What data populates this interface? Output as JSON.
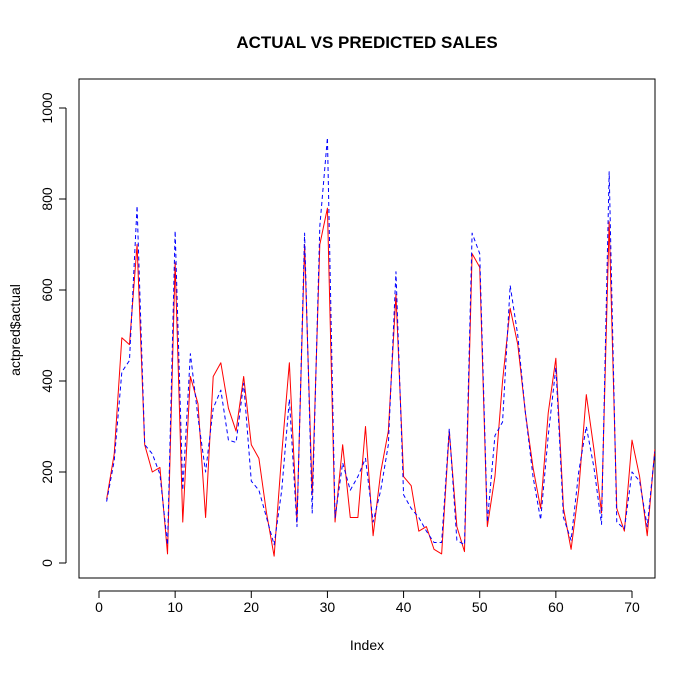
{
  "chart_data": {
    "type": "line",
    "title": "ACTUAL VS PREDICTED SALES",
    "xlabel": "Index",
    "ylabel": "actpred$actual",
    "xlim": [
      1,
      73
    ],
    "ylim": [
      0,
      1000
    ],
    "x_ticks": [
      "0",
      "10",
      "20",
      "30",
      "40",
      "50",
      "60",
      "70"
    ],
    "y_ticks": [
      "0",
      "200",
      "400",
      "600",
      "800",
      "1000"
    ],
    "grid": false,
    "x": [
      1,
      2,
      3,
      4,
      5,
      6,
      7,
      8,
      9,
      10,
      11,
      12,
      13,
      14,
      15,
      16,
      17,
      18,
      19,
      20,
      21,
      22,
      23,
      24,
      25,
      26,
      27,
      28,
      29,
      30,
      31,
      32,
      33,
      34,
      35,
      36,
      37,
      38,
      39,
      40,
      41,
      42,
      43,
      44,
      45,
      46,
      47,
      48,
      49,
      50,
      51,
      52,
      53,
      54,
      55,
      56,
      57,
      58,
      59,
      60,
      61,
      62,
      63,
      64,
      65,
      66,
      67,
      68,
      69,
      70,
      71,
      72,
      73
    ],
    "series": [
      {
        "color": "#ff0000",
        "style": "solid",
        "values": [
          140,
          240,
          495,
          480,
          700,
          260,
          200,
          210,
          20,
          660,
          90,
          410,
          350,
          100,
          410,
          440,
          340,
          290,
          410,
          260,
          230,
          110,
          15,
          240,
          440,
          90,
          700,
          150,
          700,
          780,
          90,
          260,
          100,
          100,
          300,
          60,
          200,
          290,
          590,
          190,
          170,
          70,
          80,
          30,
          20,
          290,
          80,
          25,
          680,
          650,
          80,
          190,
          400,
          560,
          480,
          330,
          210,
          120,
          330,
          450,
          120,
          30,
          160,
          370,
          250,
          110,
          750,
          120,
          70,
          270,
          190,
          60,
          250
        ]
      },
      {
        "color": "#0000ff",
        "style": "dashed",
        "values": [
          135,
          225,
          420,
          445,
          785,
          260,
          240,
          195,
          40,
          730,
          160,
          460,
          320,
          200,
          340,
          380,
          270,
          265,
          395,
          180,
          160,
          100,
          40,
          160,
          360,
          80,
          725,
          110,
          740,
          935,
          100,
          220,
          160,
          190,
          230,
          90,
          160,
          260,
          640,
          150,
          120,
          100,
          70,
          45,
          45,
          295,
          50,
          40,
          725,
          680,
          90,
          280,
          310,
          610,
          500,
          330,
          190,
          95,
          280,
          430,
          100,
          50,
          200,
          300,
          210,
          85,
          860,
          90,
          75,
          200,
          180,
          80,
          245
        ]
      }
    ]
  }
}
